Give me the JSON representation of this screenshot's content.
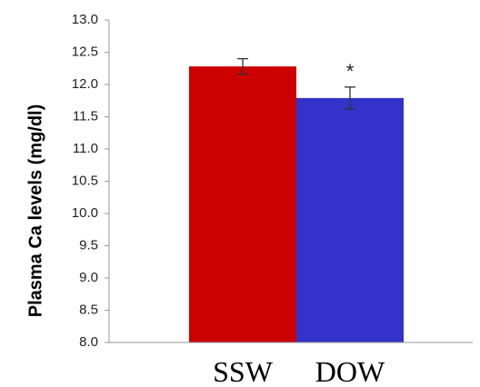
{
  "chart_data": {
    "type": "bar",
    "categories": [
      "SSW",
      "DOW"
    ],
    "values": [
      12.28,
      11.79
    ],
    "errors": [
      0.12,
      0.17
    ],
    "colors": [
      "#cc0000",
      "#3333cc"
    ],
    "ylabel": "Plasma Ca levels (mg/dl)",
    "ylim": [
      8.0,
      13.0
    ],
    "yticks": [
      "8.0",
      "8.5",
      "9.0",
      "9.5",
      "10.0",
      "10.5",
      "11.0",
      "11.5",
      "12.0",
      "12.5",
      "13.0"
    ],
    "annotations": [
      {
        "category": "DOW",
        "text": "*"
      }
    ],
    "grid": false,
    "legend": "none"
  }
}
